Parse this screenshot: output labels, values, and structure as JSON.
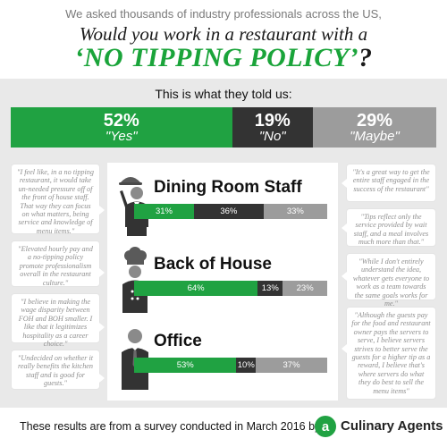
{
  "header": {
    "intro": "We asked thousands of industry professionals across the US,",
    "question": "Would you work in a restaurant with a",
    "policy": "‘NO TIPPING POLICY’",
    "qmark": "?"
  },
  "summary": {
    "caption": "This is what they told us:",
    "yes_pct": "52%",
    "yes_label": "\"Yes\"",
    "no_pct": "19%",
    "no_label": "\"No\"",
    "maybe_pct": "29%",
    "maybe_label": "\"Maybe\""
  },
  "quotes_left": [
    "\"I feel like, in a no tipping restaurant, it would take un-needed pressure off of the front of house staff. That way they can focus on what matters, being service and knowledge of menu items.\"",
    "\"Elevated hourly pay and a no-tipping policy promote professionalism overall in the restaurant culture.\"",
    "\"I believe in making the wage disparity between FOH and BOH smaller. I like that it legitimizes hospitality as a career choice.\"",
    "\"Undecided on whether it really benefits the kitchen staff and is good for guests.\""
  ],
  "quotes_right": [
    "\"It's a great way to get the entire staff engaged in the success of the restaurant\"",
    "\"Tips reflect only the service provided by wait staff, and a meal involves much more than that.\"",
    "\"While I don't entirely understand the idea, whatever gets everyone to work as a team towards the same goals works for me.\"",
    "\"Although the guests pay for the food and restaurant owner pays the servers to serve, I believe servers strives to better serve the guests for a higher tip as a reward, I believe that's where servers do what they do best to sell the menu items\""
  ],
  "footer": {
    "text": "These results are from a survey conducted in March 2016 by",
    "brand_mark": "a",
    "brand_name": "Culinary Agents"
  },
  "colors": {
    "yes": "#20a242",
    "no": "#333333",
    "maybe": "#9c9c9c",
    "background": "#e9e9e9"
  },
  "icons": [
    "waiter-icon",
    "chef-icon",
    "office-worker-icon"
  ],
  "chart_data": [
    {
      "type": "bar",
      "stacked": true,
      "orientation": "horizontal",
      "title": "This is what they told us:",
      "categories": [
        "Yes",
        "No",
        "Maybe"
      ],
      "values": [
        52,
        19,
        29
      ],
      "labels": [
        "52%",
        "19%",
        "29%"
      ]
    },
    {
      "type": "bar",
      "stacked": true,
      "orientation": "horizontal",
      "categories": [
        "Dining Room Staff",
        "Back of House",
        "Office"
      ],
      "series": [
        {
          "values": [
            31,
            64,
            53
          ],
          "labels": [
            "31%",
            "64%",
            "53%"
          ]
        },
        {
          "values": [
            36,
            13,
            10
          ],
          "labels": [
            "36%",
            "13%",
            "10%"
          ]
        },
        {
          "values": [
            33,
            23,
            37
          ],
          "labels": [
            "33%",
            "23%",
            "37%"
          ]
        }
      ]
    }
  ]
}
